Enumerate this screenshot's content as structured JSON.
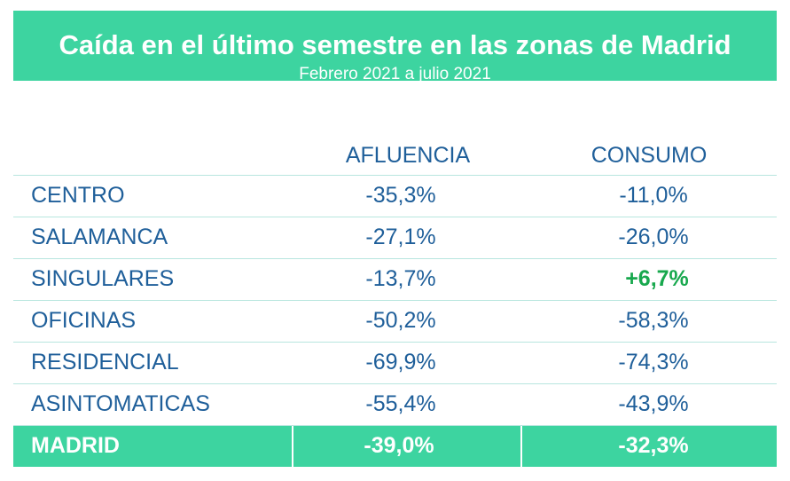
{
  "header": {
    "title": "Caída en el último semestre en las zonas de Madrid",
    "subtitle": "Febrero 2021  a julio 2021"
  },
  "chart_data": {
    "type": "table",
    "columns": [
      "AFLUENCIA",
      "CONSUMO"
    ],
    "rows": [
      {
        "zone": "CENTRO",
        "afluencia": "-35,3%",
        "consumo": "-11,0%"
      },
      {
        "zone": "SALAMANCA",
        "afluencia": "-27,1%",
        "consumo": "-26,0%"
      },
      {
        "zone": "SINGULARES",
        "afluencia": "-13,7%",
        "consumo": "+6,7%"
      },
      {
        "zone": "OFICINAS",
        "afluencia": "-50,2%",
        "consumo": "-58,3%"
      },
      {
        "zone": "RESIDENCIAL",
        "afluencia": "-69,9%",
        "consumo": "-74,3%"
      },
      {
        "zone": "ASINTOMATICAS",
        "afluencia": "-55,4%",
        "consumo": "-43,9%"
      }
    ],
    "total": {
      "zone": "MADRID",
      "afluencia": "-39,0%",
      "consumo": "-32,3%"
    },
    "colors": {
      "banner": "#3dd4a0",
      "text": "#1f5f9a",
      "positive": "#17a84d",
      "divider": "#b8e6df"
    }
  }
}
